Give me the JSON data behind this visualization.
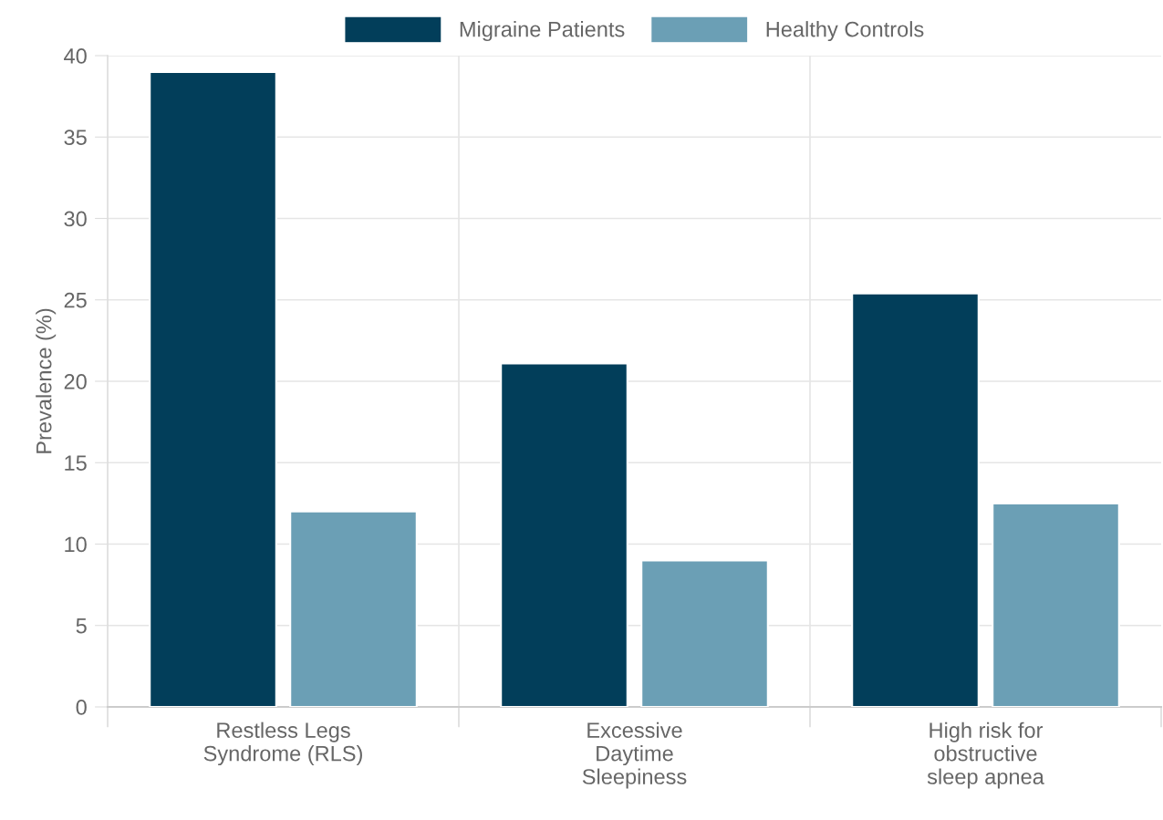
{
  "chart_data": {
    "type": "bar",
    "ylabel": "Prevalence (%)",
    "categories": [
      "Restless Legs\nSyndrome (RLS)",
      "Excessive\nDaytime\nSleepiness",
      "High risk for\nobstructive\nsleep apnea"
    ],
    "series": [
      {
        "name": "Migraine Patients",
        "color": "#023e5a",
        "values": [
          39,
          21.1,
          25.4
        ]
      },
      {
        "name": "Healthy Controls",
        "color": "#6b9fb5",
        "values": [
          12,
          9,
          12.5
        ]
      }
    ],
    "ylim": [
      0,
      40
    ],
    "yticks": [
      0,
      5,
      10,
      15,
      20,
      25,
      30,
      35,
      40
    ],
    "grid": true,
    "legend": "top"
  }
}
